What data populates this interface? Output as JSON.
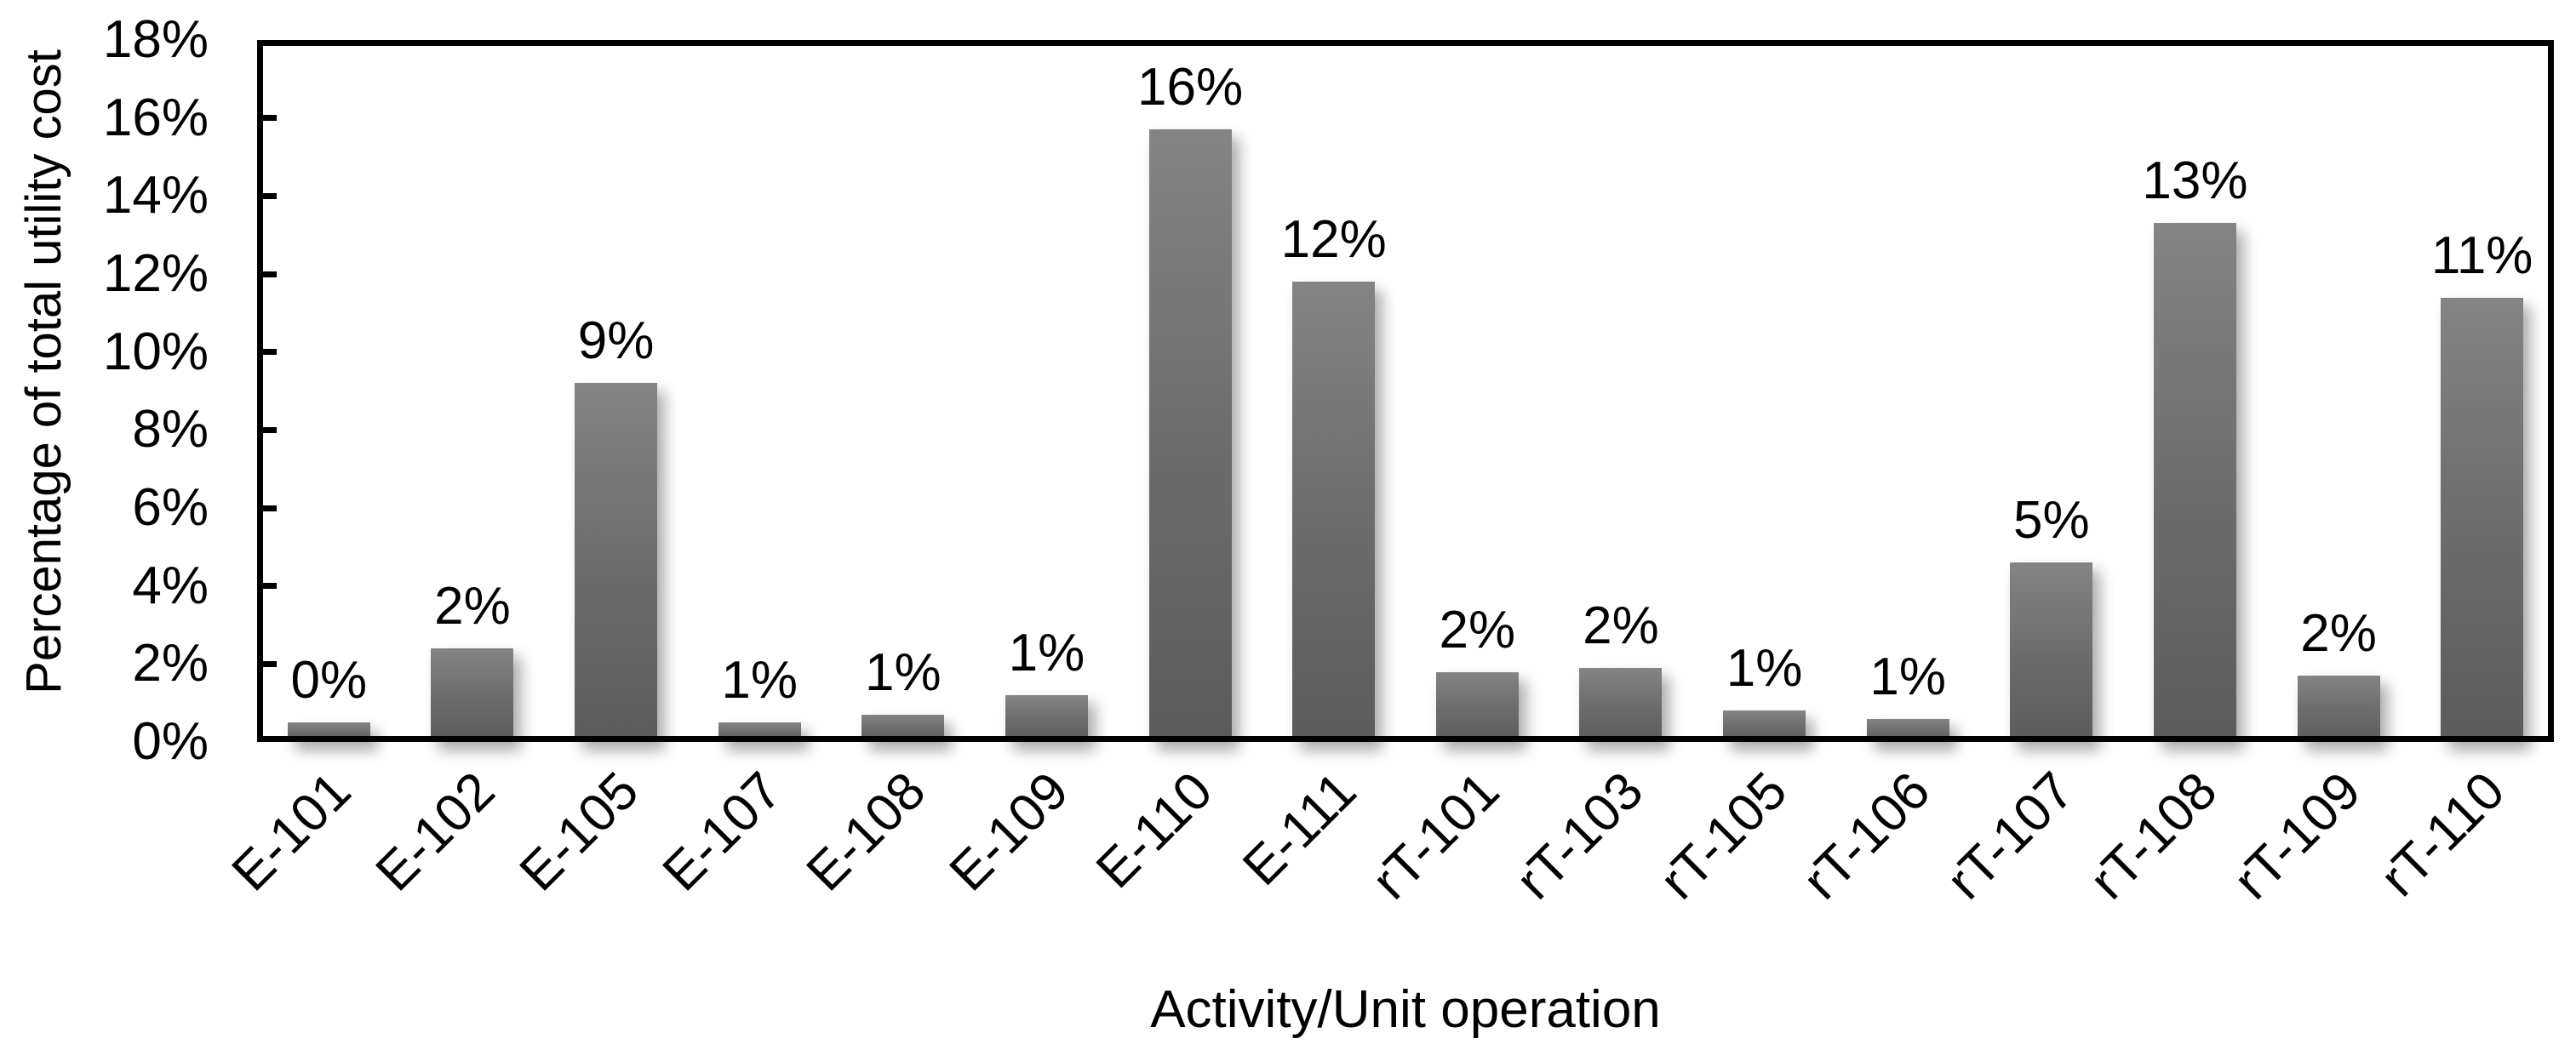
{
  "chart_data": {
    "type": "bar",
    "xlabel": "Activity/Unit operation",
    "ylabel": "Percentage of total utility cost",
    "categories": [
      "E-101",
      "E-102",
      "E-105",
      "E-107",
      "E-108",
      "E-109",
      "E-110",
      "E-111",
      "rT-101",
      "rT-103",
      "rT-105",
      "rT-106",
      "rT-107",
      "rT-108",
      "rT-109",
      "rT-110"
    ],
    "values": [
      0.5,
      2.4,
      9.2,
      0.5,
      0.7,
      1.2,
      15.7,
      11.8,
      1.8,
      1.9,
      0.8,
      0.6,
      4.6,
      13.3,
      1.7,
      11.4
    ],
    "bar_labels": [
      "0%",
      "2%",
      "9%",
      "1%",
      "1%",
      "1%",
      "16%",
      "12%",
      "2%",
      "2%",
      "1%",
      "1%",
      "5%",
      "13%",
      "2%",
      "11%"
    ],
    "ylim": [
      0,
      18
    ],
    "ytick_step": 2,
    "ytick_labels": [
      "0%",
      "2%",
      "4%",
      "6%",
      "8%",
      "10%",
      "12%",
      "14%",
      "16%",
      "18%"
    ],
    "grid": false,
    "legend": null,
    "x_label_rotation_deg": 45,
    "bar_color_top": "#848484",
    "bar_color_bottom": "#5c5c5c",
    "axis_color": "#000000",
    "text_color": "#000000",
    "background_color": "#ffffff"
  }
}
